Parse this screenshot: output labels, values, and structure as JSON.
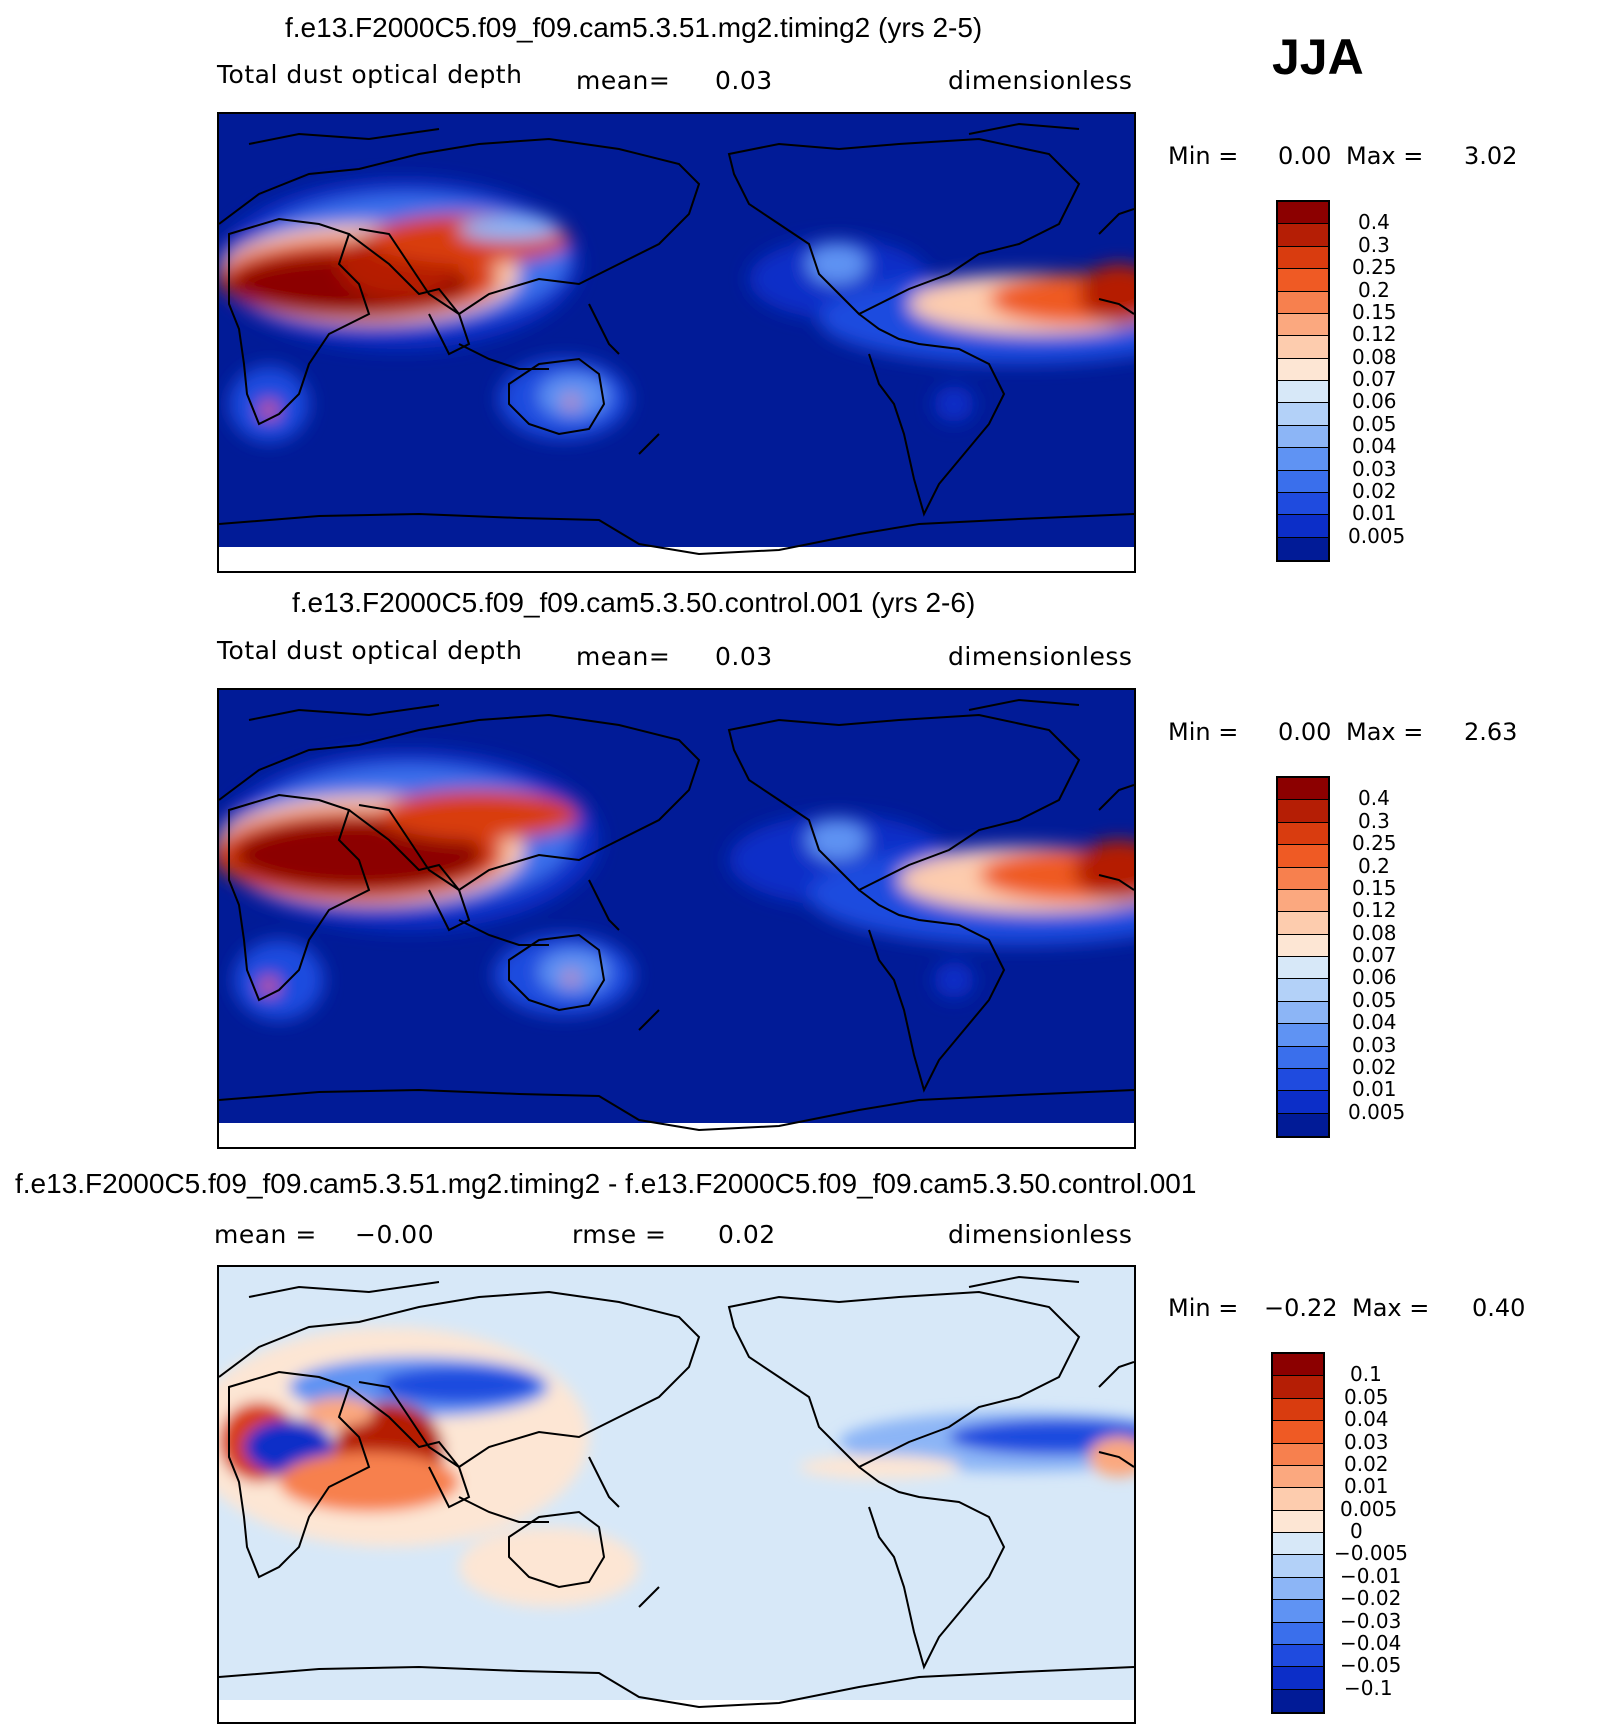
{
  "season": "JJA",
  "panels": [
    {
      "title": "f.e13.F2000C5.f09_f09.cam5.3.51.mg2.timing2 (yrs 2-5)",
      "left_label": "Total dust optical depth",
      "mid_label": "mean=",
      "mid_value": "0.03",
      "units": "dimensionless",
      "min_label": "Min =",
      "min_value": "0.00",
      "max_label": "Max =",
      "max_value": "3.02"
    },
    {
      "title": "f.e13.F2000C5.f09_f09.cam5.3.50.control.001 (yrs 2-6)",
      "left_label": "Total dust optical depth",
      "mid_label": "mean=",
      "mid_value": "0.03",
      "units": "dimensionless",
      "min_label": "Min =",
      "min_value": "0.00",
      "max_label": "Max =",
      "max_value": "2.63"
    },
    {
      "title": "f.e13.F2000C5.f09_f09.cam5.3.51.mg2.timing2 - f.e13.F2000C5.f09_f09.cam5.3.50.control.001",
      "left_label": "mean =",
      "left_value": "−0.00",
      "mid_label": "rmse =",
      "mid_value": "0.02",
      "units": "dimensionless",
      "min_label": "Min =",
      "min_value": "−0.22",
      "max_label": "Max =",
      "max_value": "0.40"
    }
  ],
  "legend_abs": {
    "labels": [
      "0.4",
      "0.3",
      "0.25",
      "0.2",
      "0.15",
      "0.12",
      "0.08",
      "0.07",
      "0.06",
      "0.05",
      "0.04",
      "0.03",
      "0.02",
      "0.01",
      "0.005"
    ],
    "colors": [
      "#8c0000",
      "#b51e05",
      "#d93c0f",
      "#ef5a24",
      "#f7804e",
      "#fba87f",
      "#fdccae",
      "#fde6d4",
      "#d7e8f8",
      "#b3d1f8",
      "#8cb5f6",
      "#5f93f3",
      "#3a6fec",
      "#1f4bdf",
      "#0c2ec8",
      "#011b97"
    ]
  },
  "legend_diff": {
    "labels": [
      "0.1",
      "0.05",
      "0.04",
      "0.03",
      "0.02",
      "0.01",
      "0.005",
      "0",
      "−0.005",
      "−0.01",
      "−0.02",
      "−0.03",
      "−0.04",
      "−0.05",
      "−0.1"
    ],
    "colors": [
      "#8c0000",
      "#b51e05",
      "#d93c0f",
      "#ef5a24",
      "#f7804e",
      "#fba87f",
      "#fdccae",
      "#fde6d4",
      "#d7e8f8",
      "#b3d1f8",
      "#8cb5f6",
      "#5f93f3",
      "#3a6fec",
      "#1f4bdf",
      "#0c2ec8",
      "#011b97"
    ]
  }
}
